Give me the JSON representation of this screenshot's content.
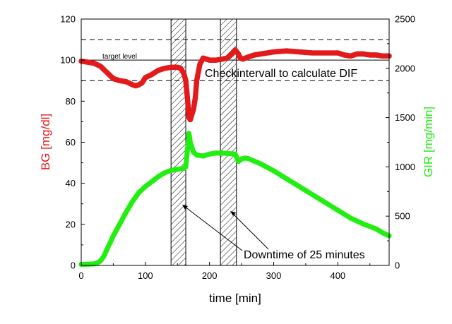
{
  "chart_data": {
    "type": "scatter",
    "xlabel": "time [min]",
    "ylabel_left": "BG [mg/dl]",
    "ylabel_right": "GIR [mg/min]",
    "xlim": [
      0,
      480
    ],
    "ylim_left": [
      0,
      120
    ],
    "ylim_right": [
      0,
      2500
    ],
    "x_ticks": [
      "0",
      "100",
      "200",
      "300",
      "400"
    ],
    "y_left_ticks": [
      "0",
      "20",
      "40",
      "60",
      "80",
      "100",
      "120"
    ],
    "y_right_ticks": [
      "0",
      "500",
      "1000",
      "1500",
      "2000",
      "2500"
    ],
    "grid": false,
    "colors": {
      "bg": "#e31a1c",
      "gir": "#22ee11",
      "axis_left_label": "#e31a1c",
      "axis_right_label": "#22ee11"
    },
    "reference_lines": [
      {
        "axis": "left",
        "value": 110,
        "style": "dashed"
      },
      {
        "axis": "left",
        "value": 100,
        "style": "solid",
        "label": "target level"
      },
      {
        "axis": "left",
        "value": 90,
        "style": "dashed"
      }
    ],
    "hatched_regions": [
      {
        "x_start": 140,
        "x_end": 163
      },
      {
        "x_start": 217,
        "x_end": 242
      }
    ],
    "annotations": {
      "check_interval": "Checkintervall to calculate DIF",
      "downtime": "Downtime of 25 minutes"
    },
    "series": [
      {
        "name": "BG",
        "axis": "left",
        "points": [
          [
            0,
            99.5
          ],
          [
            10,
            99
          ],
          [
            20,
            98.5
          ],
          [
            30,
            97
          ],
          [
            40,
            94
          ],
          [
            50,
            91
          ],
          [
            60,
            90
          ],
          [
            70,
            89.5
          ],
          [
            80,
            88
          ],
          [
            85,
            87.5
          ],
          [
            90,
            88
          ],
          [
            95,
            89
          ],
          [
            100,
            91.5
          ],
          [
            110,
            93
          ],
          [
            120,
            95
          ],
          [
            130,
            96
          ],
          [
            140,
            96.5
          ],
          [
            150,
            96.5
          ],
          [
            155,
            96
          ],
          [
            160,
            93.5
          ],
          [
            163,
            90
          ],
          [
            166,
            80
          ],
          [
            168,
            72
          ],
          [
            170,
            71
          ],
          [
            172,
            73
          ],
          [
            175,
            76
          ],
          [
            178,
            82
          ],
          [
            180,
            90
          ],
          [
            185,
            98
          ],
          [
            190,
            101
          ],
          [
            195,
            100.5
          ],
          [
            200,
            100
          ],
          [
            210,
            100
          ],
          [
            220,
            100.5
          ],
          [
            228,
            101
          ],
          [
            235,
            103
          ],
          [
            240,
            105
          ],
          [
            245,
            103
          ],
          [
            248,
            101
          ],
          [
            252,
            100.5
          ],
          [
            260,
            101.5
          ],
          [
            270,
            102.5
          ],
          [
            280,
            103
          ],
          [
            290,
            103.5
          ],
          [
            300,
            104
          ],
          [
            320,
            104.5
          ],
          [
            340,
            104
          ],
          [
            360,
            103.5
          ],
          [
            380,
            103.5
          ],
          [
            400,
            103.5
          ],
          [
            410,
            102.5
          ],
          [
            420,
            102
          ],
          [
            430,
            103
          ],
          [
            440,
            103
          ],
          [
            450,
            102.5
          ],
          [
            460,
            102.5
          ],
          [
            470,
            102
          ],
          [
            480,
            102
          ]
        ]
      },
      {
        "name": "GIR",
        "axis": "right",
        "points": [
          [
            0,
            10
          ],
          [
            10,
            12
          ],
          [
            20,
            15
          ],
          [
            25,
            25
          ],
          [
            30,
            45
          ],
          [
            35,
            90
          ],
          [
            40,
            160
          ],
          [
            50,
            300
          ],
          [
            60,
            420
          ],
          [
            70,
            540
          ],
          [
            80,
            650
          ],
          [
            90,
            740
          ],
          [
            100,
            800
          ],
          [
            110,
            850
          ],
          [
            120,
            900
          ],
          [
            130,
            940
          ],
          [
            140,
            965
          ],
          [
            150,
            975
          ],
          [
            160,
            985
          ],
          [
            163,
            1000
          ],
          [
            166,
            1200
          ],
          [
            168,
            1340
          ],
          [
            170,
            1250
          ],
          [
            175,
            1150
          ],
          [
            180,
            1120
          ],
          [
            190,
            1110
          ],
          [
            200,
            1130
          ],
          [
            210,
            1140
          ],
          [
            220,
            1140
          ],
          [
            230,
            1135
          ],
          [
            240,
            1130
          ],
          [
            245,
            1055
          ],
          [
            250,
            1080
          ],
          [
            255,
            1090
          ],
          [
            260,
            1085
          ],
          [
            280,
            1030
          ],
          [
            300,
            960
          ],
          [
            320,
            880
          ],
          [
            340,
            800
          ],
          [
            360,
            720
          ],
          [
            380,
            640
          ],
          [
            400,
            560
          ],
          [
            420,
            480
          ],
          [
            440,
            420
          ],
          [
            460,
            370
          ],
          [
            470,
            330
          ],
          [
            480,
            300
          ]
        ]
      }
    ]
  }
}
